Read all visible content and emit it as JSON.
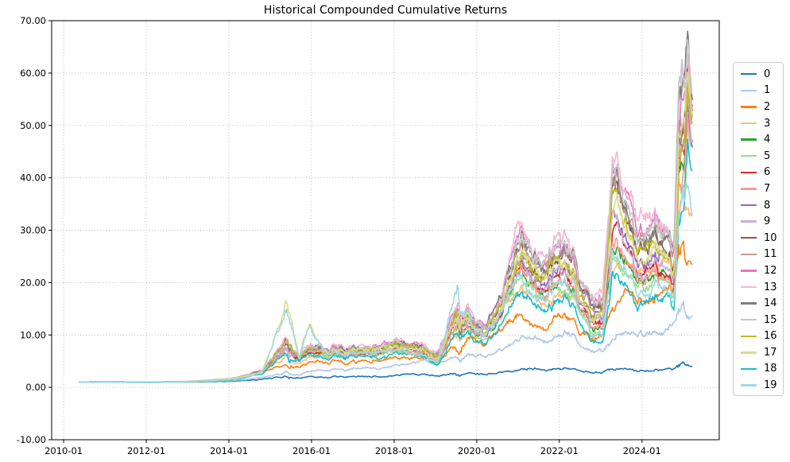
{
  "chart_data": {
    "type": "line",
    "title": "Historical Compounded Cumulative Returns",
    "xlabel": "",
    "ylabel": "",
    "grid": true,
    "legend_position": "right-outside",
    "xlim": [
      2009.71,
      2025.87
    ],
    "ylim": [
      -10,
      70
    ],
    "x_ticks": [
      2010,
      2012,
      2014,
      2016,
      2018,
      2020,
      2022,
      2024
    ],
    "x_tick_labels": [
      "2010-01",
      "2012-01",
      "2014-01",
      "2016-01",
      "2018-01",
      "2020-01",
      "2022-01",
      "2024-01"
    ],
    "y_ticks": [
      -10,
      0,
      10,
      20,
      30,
      40,
      50,
      60,
      70
    ],
    "y_tick_labels": [
      "-10.00",
      "0.00",
      "10.00",
      "20.00",
      "30.00",
      "40.00",
      "50.00",
      "60.00",
      "70.00"
    ],
    "x_anchors": [
      2010.37,
      2011.0,
      2012.0,
      2013.0,
      2014.0,
      2014.8,
      2015.45,
      2015.7,
      2015.95,
      2016.3,
      2017.0,
      2017.6,
      2018.0,
      2018.5,
      2019.05,
      2019.55,
      2019.9,
      2020.2,
      2020.6,
      2021.0,
      2021.45,
      2021.8,
      2022.05,
      2022.45,
      2022.75,
      2023.05,
      2023.3,
      2023.55,
      2023.95,
      2024.3,
      2024.6,
      2024.78,
      2024.9,
      2025.0,
      2025.1,
      2025.22
    ],
    "series": [
      {
        "name": "0",
        "color": "#1f77b4",
        "values": [
          1.0,
          1.05,
          0.95,
          1.0,
          1.15,
          1.5,
          2.0,
          1.8,
          2.0,
          1.9,
          2.1,
          2.2,
          2.3,
          2.4,
          2.4,
          2.6,
          2.7,
          2.6,
          2.9,
          3.3,
          3.6,
          3.7,
          3.7,
          3.4,
          3.1,
          2.9,
          3.2,
          3.3,
          3.2,
          3.4,
          3.5,
          3.5,
          3.9,
          4.0,
          4.1,
          4.3
        ]
      },
      {
        "name": "1",
        "color": "#aec7e8",
        "values": [
          1.0,
          1.05,
          0.95,
          1.05,
          1.3,
          1.8,
          2.9,
          2.6,
          3.1,
          3.3,
          3.6,
          3.8,
          4.1,
          4.6,
          5.0,
          5.9,
          6.4,
          5.8,
          7.3,
          8.9,
          9.4,
          9.7,
          10.0,
          8.8,
          7.5,
          7.1,
          8.2,
          9.3,
          10.2,
          10.5,
          10.8,
          11.3,
          12.1,
          11.9,
          12.4,
          13.5
        ]
      },
      {
        "name": "2",
        "color": "#ff7f0e",
        "values": [
          1.0,
          1.1,
          1.0,
          1.1,
          1.5,
          2.6,
          4.6,
          3.9,
          4.7,
          4.8,
          5.0,
          5.3,
          5.6,
          5.2,
          5.1,
          8.0,
          9.6,
          8.2,
          11.0,
          13.3,
          12.0,
          13.4,
          13.9,
          12.0,
          10.4,
          10.8,
          14.0,
          15.8,
          16.6,
          17.2,
          17.8,
          16.8,
          20.5,
          19.8,
          21.5,
          24.2
        ]
      },
      {
        "name": "3",
        "color": "#ffbb78",
        "values": [
          1.0,
          1.1,
          1.0,
          1.1,
          1.6,
          2.8,
          5.8,
          4.8,
          5.8,
          5.9,
          6.2,
          6.6,
          7.0,
          6.4,
          6.0,
          10.0,
          12.5,
          10.5,
          14.5,
          17.8,
          16.0,
          17.8,
          18.8,
          16.0,
          13.6,
          13.2,
          18.0,
          21.0,
          22.0,
          23.5,
          24.5,
          22.5,
          28.0,
          27.0,
          30.0,
          32.5
        ]
      },
      {
        "name": "4",
        "color": "#2ca02c",
        "values": [
          1.0,
          1.1,
          1.0,
          1.1,
          1.5,
          2.6,
          7.5,
          5.5,
          6.8,
          6.5,
          6.3,
          6.8,
          7.3,
          6.3,
          5.4,
          11.8,
          10.7,
          9.4,
          13.4,
          21.1,
          17.6,
          20.0,
          20.5,
          16.1,
          12.5,
          11.8,
          25.1,
          22.4,
          19.9,
          22.7,
          20.0,
          16.5,
          35.7,
          30.9,
          46.8,
          44.6
        ]
      },
      {
        "name": "5",
        "color": "#98df8a",
        "values": [
          1.0,
          1.1,
          1.0,
          1.0,
          1.5,
          2.5,
          7.3,
          5.5,
          6.7,
          6.4,
          6.2,
          6.7,
          7.1,
          6.2,
          5.2,
          11.5,
          10.4,
          9.2,
          13.1,
          20.4,
          17.0,
          19.3,
          19.8,
          15.5,
          11.9,
          11.3,
          23.9,
          21.4,
          19.0,
          21.7,
          19.2,
          15.8,
          34.4,
          29.8,
          45.9,
          43.8
        ]
      },
      {
        "name": "6",
        "color": "#d62728",
        "values": [
          1.0,
          1.1,
          1.0,
          1.1,
          1.5,
          2.6,
          8.5,
          5.7,
          7.0,
          6.7,
          6.6,
          7.1,
          7.6,
          6.6,
          5.6,
          12.4,
          11.2,
          9.8,
          14.1,
          22.6,
          18.8,
          21.4,
          21.9,
          17.3,
          13.6,
          12.9,
          27.4,
          24.5,
          21.7,
          24.6,
          21.6,
          17.9,
          38.4,
          33.2,
          48.5,
          46.3
        ]
      },
      {
        "name": "7",
        "color": "#ff9896",
        "values": [
          1.0,
          1.1,
          1.0,
          1.1,
          1.5,
          2.6,
          7.7,
          5.6,
          6.9,
          6.6,
          6.4,
          6.9,
          7.4,
          6.4,
          5.5,
          12.1,
          10.9,
          9.6,
          13.8,
          21.8,
          18.2,
          20.7,
          21.2,
          16.7,
          13.0,
          12.4,
          26.2,
          23.4,
          20.8,
          23.6,
          20.8,
          17.2,
          37.0,
          32.1,
          47.6,
          45.5
        ]
      },
      {
        "name": "8",
        "color": "#9467bd",
        "values": [
          1.0,
          1.1,
          1.0,
          1.1,
          1.6,
          2.7,
          8.2,
          5.9,
          7.3,
          6.9,
          6.8,
          7.4,
          7.9,
          6.8,
          5.9,
          13.0,
          11.8,
          10.3,
          14.8,
          24.0,
          20.0,
          22.8,
          23.3,
          18.5,
          14.8,
          14.0,
          29.8,
          26.5,
          23.5,
          26.5,
          23.3,
          19.3,
          41.0,
          35.5,
          50.3,
          48.0
        ]
      },
      {
        "name": "9",
        "color": "#c5b0d5",
        "values": [
          1.0,
          1.1,
          1.0,
          1.1,
          1.5,
          2.7,
          8.0,
          5.8,
          7.1,
          6.8,
          6.7,
          7.2,
          7.7,
          6.7,
          5.8,
          12.7,
          11.5,
          10.0,
          14.4,
          23.3,
          19.4,
          22.1,
          22.6,
          17.9,
          14.2,
          13.5,
          28.6,
          25.5,
          22.6,
          25.5,
          22.4,
          18.6,
          39.7,
          34.4,
          49.4,
          47.2
        ]
      },
      {
        "name": "10",
        "color": "#8c564b",
        "values": [
          1.0,
          1.1,
          1.0,
          1.1,
          1.6,
          2.8,
          8.7,
          6.1,
          7.7,
          7.3,
          7.2,
          7.9,
          8.5,
          7.2,
          6.4,
          14.1,
          12.7,
          11.0,
          16.0,
          26.6,
          22.2,
          25.3,
          25.8,
          20.7,
          16.8,
          16.0,
          34.0,
          30.2,
          26.8,
          30.0,
          26.2,
          21.8,
          45.8,
          39.7,
          53.4,
          51.1
        ]
      },
      {
        "name": "11",
        "color": "#c49c94",
        "values": [
          1.0,
          1.1,
          1.0,
          1.1,
          1.6,
          2.9,
          8.9,
          6.2,
          7.8,
          7.4,
          7.3,
          8.0,
          8.6,
          7.3,
          6.5,
          14.4,
          13.0,
          11.2,
          16.2,
          27.2,
          22.7,
          25.9,
          26.4,
          21.2,
          17.3,
          16.4,
          35.0,
          31.1,
          27.6,
          30.8,
          26.9,
          22.4,
          46.9,
          40.6,
          54.2,
          51.8
        ]
      },
      {
        "name": "12",
        "color": "#e377c2",
        "values": [
          1.0,
          1.1,
          1.0,
          1.1,
          1.7,
          3.0,
          9.3,
          6.4,
          8.1,
          7.7,
          7.7,
          8.3,
          9.0,
          7.7,
          6.9,
          15.2,
          13.7,
          11.8,
          17.1,
          29.2,
          24.3,
          27.7,
          28.2,
          22.8,
          18.8,
          17.9,
          38.1,
          33.8,
          30.0,
          33.4,
          29.1,
          24.2,
          50.5,
          43.7,
          56.5,
          54.0
        ]
      },
      {
        "name": "13",
        "color": "#f7b6d2",
        "values": [
          1.0,
          1.1,
          1.0,
          1.15,
          1.7,
          3.0,
          9.5,
          6.5,
          8.2,
          7.8,
          7.8,
          8.5,
          9.2,
          7.8,
          7.0,
          15.5,
          14.0,
          12.0,
          17.5,
          30.0,
          25.0,
          28.5,
          29.0,
          23.5,
          19.5,
          18.5,
          39.5,
          35.0,
          31.0,
          34.5,
          30.0,
          25.0,
          52.0,
          45.0,
          57.5,
          55.0
        ]
      },
      {
        "name": "14",
        "color": "#7f7f7f",
        "values": [
          1.0,
          1.1,
          1.0,
          1.1,
          1.6,
          2.9,
          9.0,
          6.3,
          7.9,
          7.5,
          7.4,
          8.1,
          8.7,
          7.4,
          6.6,
          14.6,
          13.2,
          11.4,
          16.5,
          27.8,
          23.2,
          26.4,
          26.9,
          21.7,
          17.8,
          16.9,
          36.0,
          31.9,
          28.3,
          31.6,
          27.6,
          22.9,
          48.0,
          41.6,
          54.9,
          52.5
        ]
      },
      {
        "name": "15",
        "color": "#c7c7c7",
        "values": [
          1.0,
          1.1,
          1.0,
          1.1,
          1.7,
          2.9,
          9.2,
          6.3,
          8.0,
          7.6,
          7.6,
          8.2,
          8.9,
          7.6,
          6.7,
          14.9,
          13.5,
          11.6,
          16.8,
          28.6,
          23.8,
          27.1,
          27.6,
          22.3,
          18.4,
          17.4,
          37.2,
          33.0,
          29.2,
          32.6,
          28.4,
          23.6,
          49.4,
          42.7,
          55.8,
          53.3
        ]
      },
      {
        "name": "16",
        "color": "#bcbd22",
        "values": [
          1.0,
          1.1,
          1.0,
          1.1,
          1.6,
          2.8,
          8.5,
          6.0,
          7.5,
          7.1,
          7.0,
          7.6,
          8.2,
          7.0,
          6.2,
          13.6,
          12.3,
          10.7,
          15.4,
          25.4,
          21.2,
          24.1,
          24.6,
          19.7,
          15.9,
          15.1,
          32.1,
          28.5,
          25.3,
          28.4,
          24.9,
          20.6,
          43.6,
          37.8,
          52.0,
          49.7
        ]
      },
      {
        "name": "17",
        "color": "#dbdb8d",
        "values": [
          1.0,
          1.1,
          1.0,
          1.1,
          1.6,
          2.7,
          15.8,
          5.9,
          12.5,
          7.0,
          6.9,
          7.5,
          8.0,
          6.9,
          6.0,
          13.3,
          12.0,
          10.4,
          15.0,
          24.6,
          20.5,
          23.3,
          23.8,
          19.0,
          15.2,
          14.5,
          30.7,
          27.4,
          24.3,
          27.3,
          23.9,
          19.8,
          42.1,
          36.5,
          51.0,
          48.7
        ]
      },
      {
        "name": "18",
        "color": "#17becf",
        "values": [
          1.0,
          1.05,
          0.95,
          1.05,
          1.4,
          2.4,
          6.8,
          5.2,
          6.3,
          6.0,
          5.8,
          6.2,
          6.6,
          5.8,
          4.8,
          10.5,
          9.5,
          8.5,
          12.0,
          18.0,
          15.0,
          17.0,
          17.5,
          13.5,
          10.0,
          9.5,
          20.0,
          18.0,
          16.0,
          18.5,
          16.5,
          13.5,
          30.0,
          26.0,
          43.0,
          41.0
        ]
      },
      {
        "name": "19",
        "color": "#9edae5",
        "values": [
          1.0,
          1.05,
          0.9,
          1.05,
          1.45,
          2.6,
          15.3,
          5.5,
          12.0,
          6.5,
          6.5,
          7.0,
          7.5,
          6.2,
          5.2,
          18.0,
          12.0,
          10.0,
          14.0,
          22.0,
          17.0,
          19.5,
          20.5,
          15.5,
          11.5,
          11.0,
          24.0,
          21.0,
          18.0,
          21.0,
          18.5,
          15.0,
          33.0,
          29.0,
          36.0,
          34.0
        ]
      }
    ]
  }
}
